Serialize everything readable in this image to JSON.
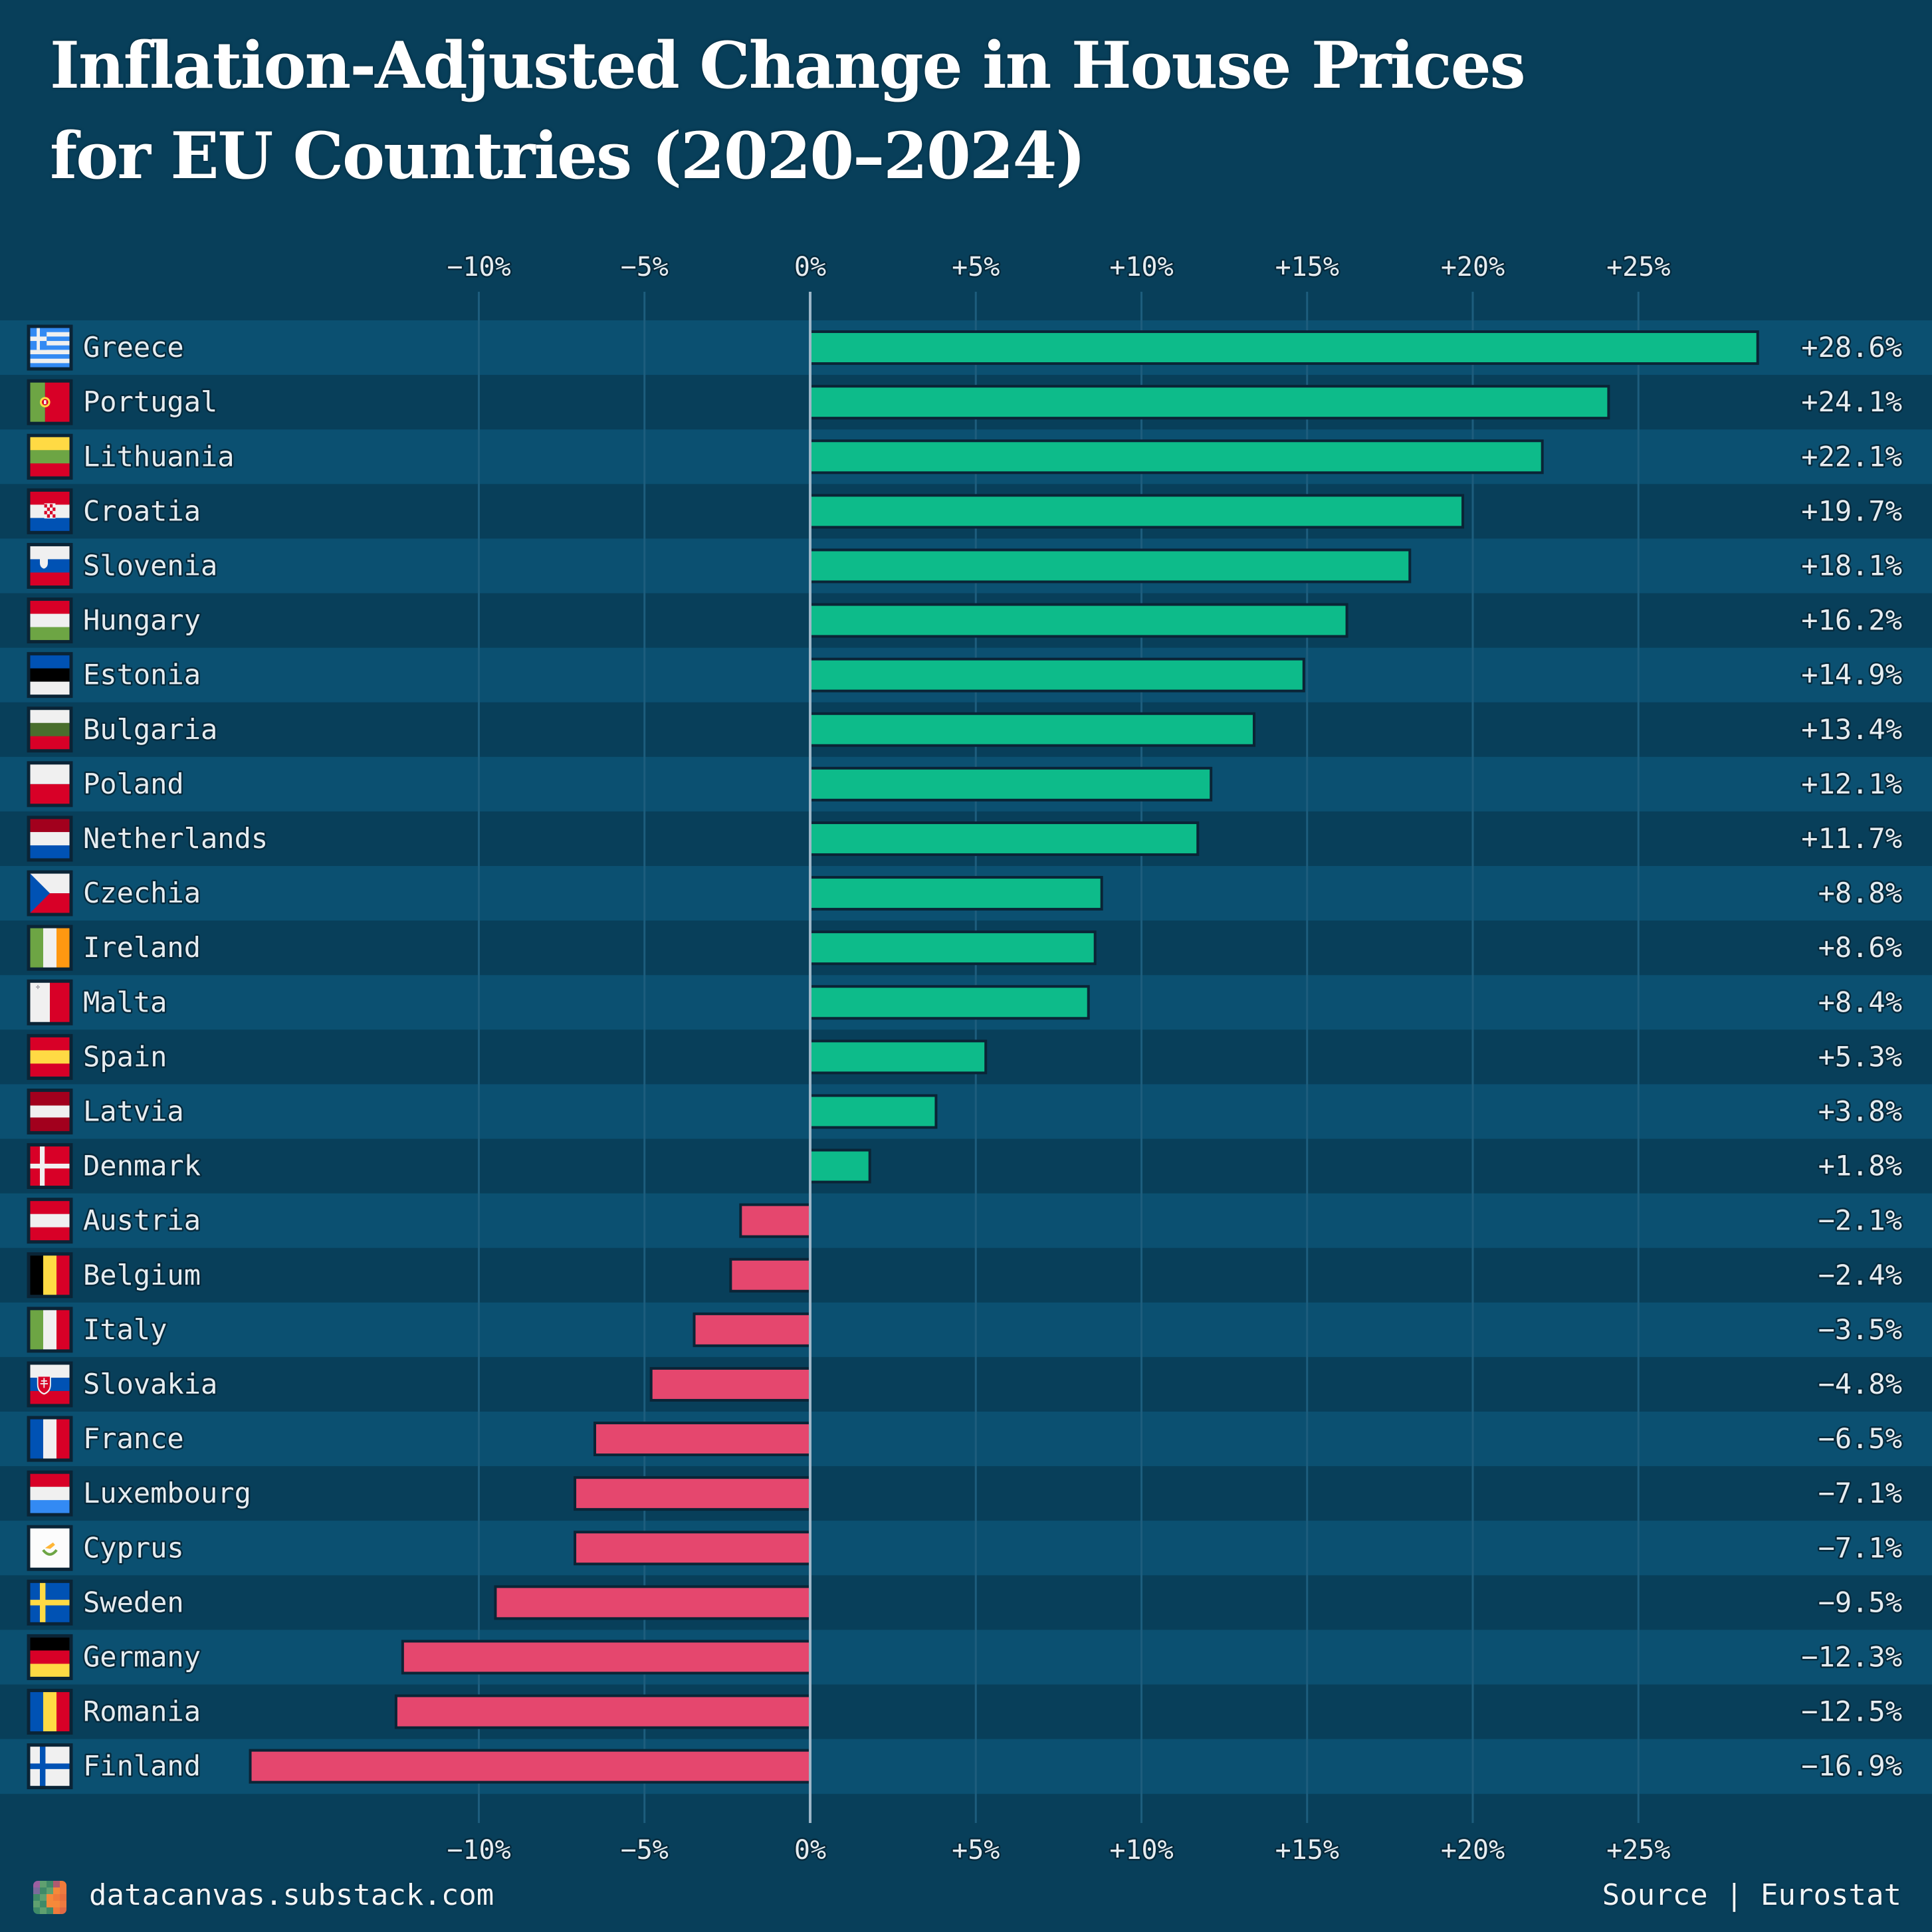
{
  "title": {
    "line1": "Inflation-Adjusted Change in House Prices",
    "line2": "for EU Countries (2020–2024)"
  },
  "colors": {
    "background": "#083f5a",
    "row_band_light": "#0b5071",
    "row_band_dark": "#083f5a",
    "gridline": "#1d5d7d",
    "zero_line": "#9db6c8",
    "positive_bar": "#0dbb8a",
    "negative_bar": "#e5476e",
    "bar_border": "#0a2436",
    "text": "#e6ecf0"
  },
  "footer": {
    "site": "datacanvas.substack.com",
    "source": "Source | Eurostat",
    "logo_icon": "pixel-mosaic-logo-icon"
  },
  "chart_data": {
    "type": "bar",
    "orientation": "horizontal",
    "title": "Inflation-Adjusted Change in House Prices for EU Countries (2020–2024)",
    "xlabel": "",
    "ylabel": "",
    "xlim": [
      -17,
      30
    ],
    "x_ticks": [
      -10,
      -5,
      0,
      5,
      10,
      15,
      20,
      25
    ],
    "x_tick_labels": [
      "−10%",
      "−5%",
      "0%",
      "+5%",
      "+10%",
      "+15%",
      "+20%",
      "+25%"
    ],
    "tick_labels_position": "top-and-bottom",
    "grid": true,
    "legend": "none",
    "source": "Eurostat",
    "categories": [
      "Greece",
      "Portugal",
      "Lithuania",
      "Croatia",
      "Slovenia",
      "Hungary",
      "Estonia",
      "Bulgaria",
      "Poland",
      "Netherlands",
      "Czechia",
      "Ireland",
      "Malta",
      "Spain",
      "Latvia",
      "Denmark",
      "Austria",
      "Belgium",
      "Italy",
      "Slovakia",
      "France",
      "Luxembourg",
      "Cyprus",
      "Sweden",
      "Germany",
      "Romania",
      "Finland"
    ],
    "values": [
      28.6,
      24.1,
      22.1,
      19.7,
      18.1,
      16.2,
      14.9,
      13.4,
      12.1,
      11.7,
      8.8,
      8.6,
      8.4,
      5.3,
      3.8,
      1.8,
      -2.1,
      -2.4,
      -3.5,
      -4.8,
      -6.5,
      -7.1,
      -7.1,
      -9.5,
      -12.3,
      -12.5,
      -16.9
    ],
    "value_labels": [
      "+28.6%",
      "+24.1%",
      "+22.1%",
      "+19.7%",
      "+18.1%",
      "+16.2%",
      "+14.9%",
      "+13.4%",
      "+12.1%",
      "+11.7%",
      "+8.8%",
      "+8.6%",
      "+8.4%",
      "+5.3%",
      "+3.8%",
      "+1.8%",
      "−2.1%",
      "−2.4%",
      "−3.5%",
      "−4.8%",
      "−6.5%",
      "−7.1%",
      "−7.1%",
      "−9.5%",
      "−12.3%",
      "−12.5%",
      "−16.9%"
    ],
    "flag_icons": [
      "greece-flag-icon",
      "portugal-flag-icon",
      "lithuania-flag-icon",
      "croatia-flag-icon",
      "slovenia-flag-icon",
      "hungary-flag-icon",
      "estonia-flag-icon",
      "bulgaria-flag-icon",
      "poland-flag-icon",
      "netherlands-flag-icon",
      "czechia-flag-icon",
      "ireland-flag-icon",
      "malta-flag-icon",
      "spain-flag-icon",
      "latvia-flag-icon",
      "denmark-flag-icon",
      "austria-flag-icon",
      "belgium-flag-icon",
      "italy-flag-icon",
      "slovakia-flag-icon",
      "france-flag-icon",
      "luxembourg-flag-icon",
      "cyprus-flag-icon",
      "sweden-flag-icon",
      "germany-flag-icon",
      "romania-flag-icon",
      "finland-flag-icon"
    ]
  }
}
